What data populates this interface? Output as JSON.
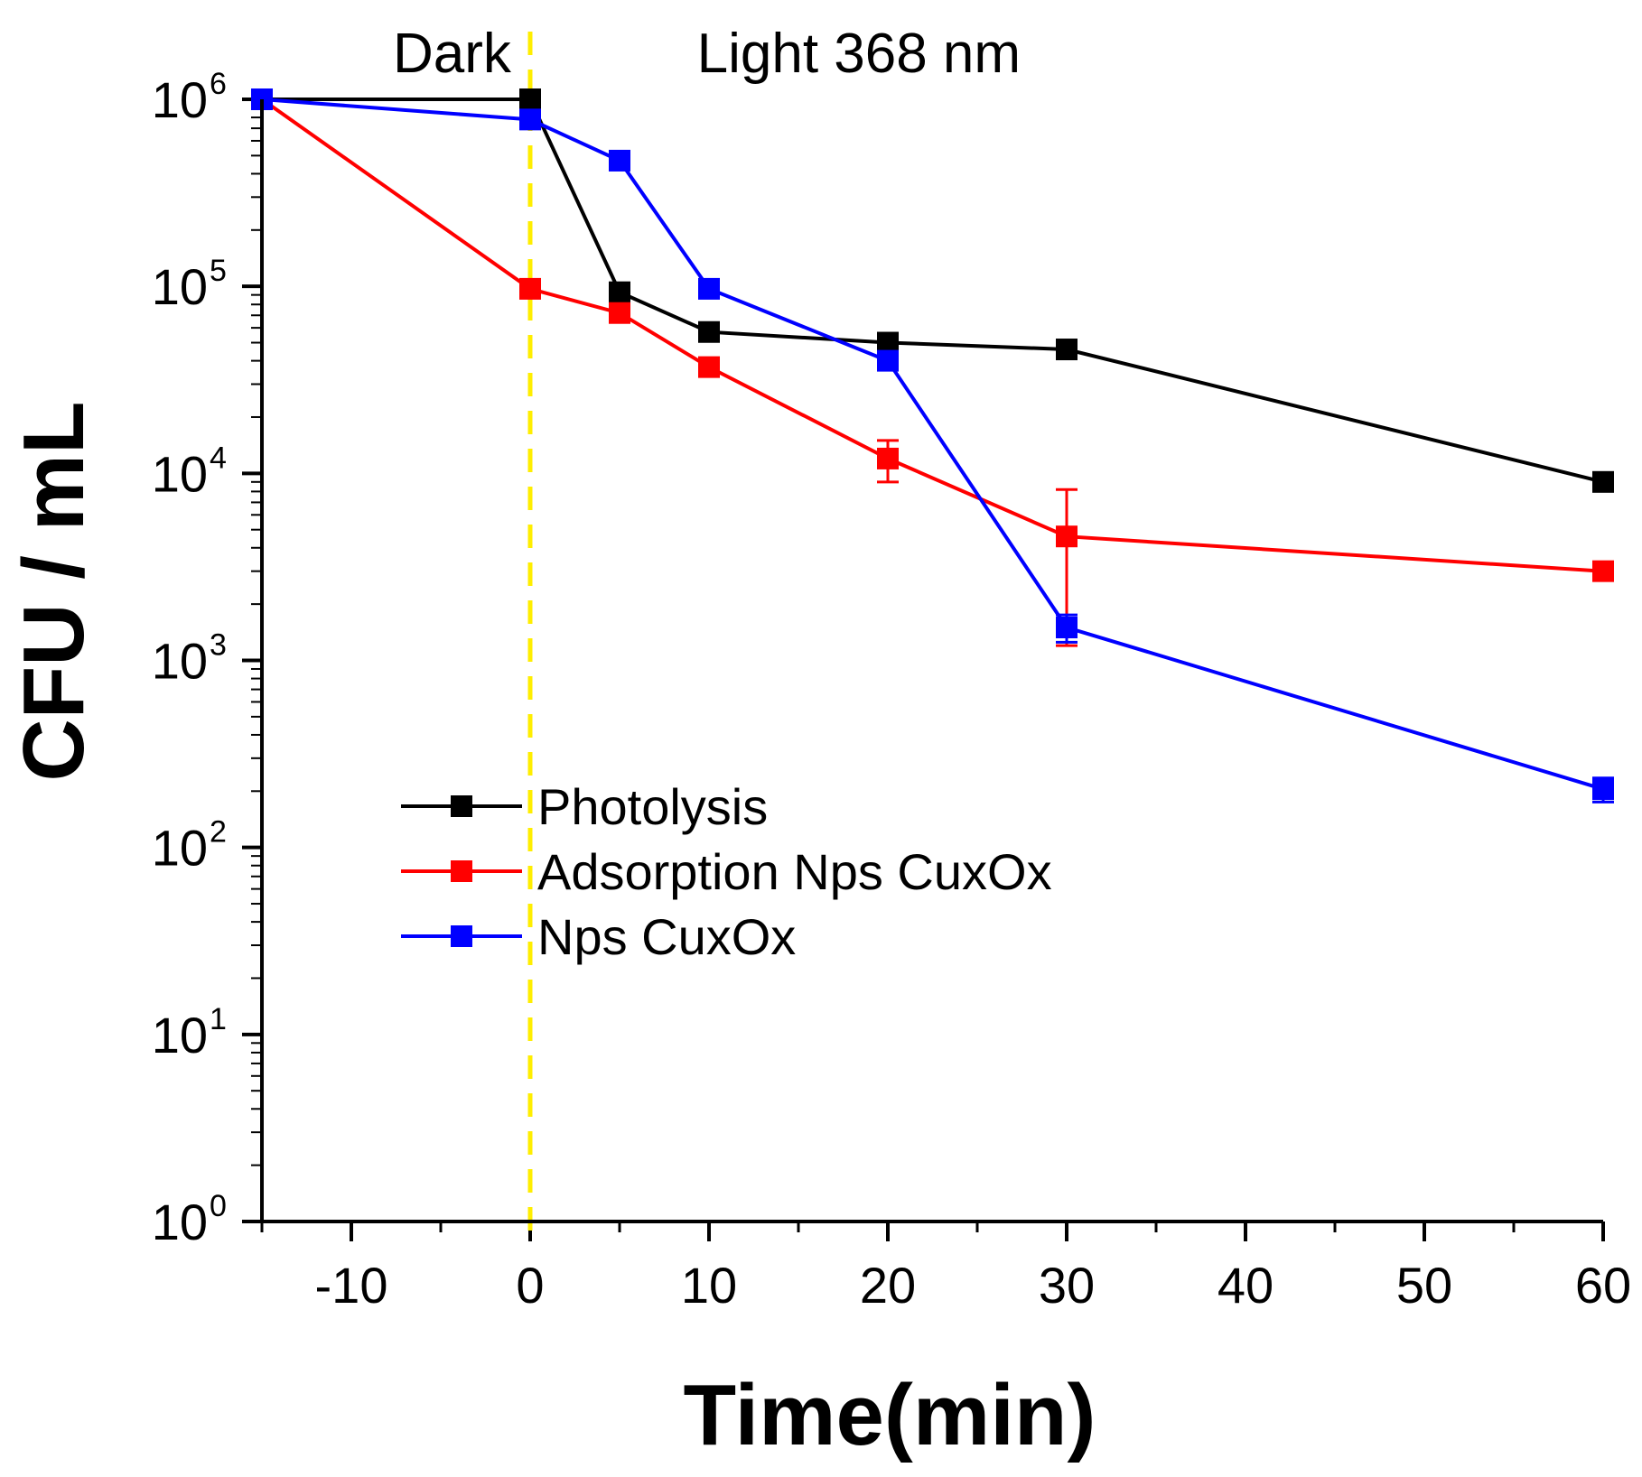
{
  "chart_data": {
    "type": "line",
    "xlabel": "Time(min)",
    "ylabel": "CFU / mL",
    "yscale": "log",
    "xlim": [
      -15,
      60
    ],
    "ylim": [
      1,
      1000000
    ],
    "x_ticks": [
      -10,
      0,
      10,
      20,
      30,
      40,
      50,
      60
    ],
    "x_tick_labels": [
      "-10",
      "0",
      "10",
      "20",
      "30",
      "40",
      "50",
      "60"
    ],
    "y_ticks": [
      {
        "value": 1,
        "base": "10",
        "exp": "0"
      },
      {
        "value": 10,
        "base": "10",
        "exp": "1"
      },
      {
        "value": 100,
        "base": "10",
        "exp": "2"
      },
      {
        "value": 1000,
        "base": "10",
        "exp": "3"
      },
      {
        "value": 10000,
        "base": "10",
        "exp": "4"
      },
      {
        "value": 100000,
        "base": "10",
        "exp": "5"
      },
      {
        "value": 1000000,
        "base": "10",
        "exp": "6"
      }
    ],
    "annotations": [
      {
        "text": "Dark",
        "x": -15,
        "y": 2100000
      },
      {
        "text": "Light 368 nm",
        "x": 2,
        "y": 2100000
      }
    ],
    "reference_line": {
      "x": 0,
      "color": "#FFEE00"
    },
    "legend_position": "center-left",
    "series": [
      {
        "name": "Photolysis",
        "color": "#000000",
        "x": [
          -15,
          0,
          5,
          10,
          20,
          30,
          60
        ],
        "y": [
          1000000,
          1000000,
          93000,
          57000,
          50000,
          46000,
          9000
        ],
        "err": [
          null,
          null,
          null,
          null,
          null,
          null,
          null
        ]
      },
      {
        "name": "Adsorption Nps CuxOx",
        "color": "#FF0000",
        "x": [
          -15,
          0,
          5,
          10,
          20,
          30,
          60
        ],
        "y": [
          1000000,
          97000,
          72000,
          37000,
          12000,
          4600,
          3000
        ],
        "err": [
          null,
          null,
          null,
          null,
          [
            9000,
            15000
          ],
          [
            1200,
            8200
          ],
          null
        ]
      },
      {
        "name": "Nps CuxOx",
        "color": "#0000FF",
        "x": [
          -15,
          0,
          5,
          10,
          20,
          30,
          60
        ],
        "y": [
          1000000,
          780000,
          470000,
          97000,
          40000,
          1500,
          205
        ],
        "err": [
          null,
          null,
          null,
          null,
          null,
          [
            1250,
            1750
          ],
          [
            175,
            235
          ]
        ]
      }
    ]
  }
}
